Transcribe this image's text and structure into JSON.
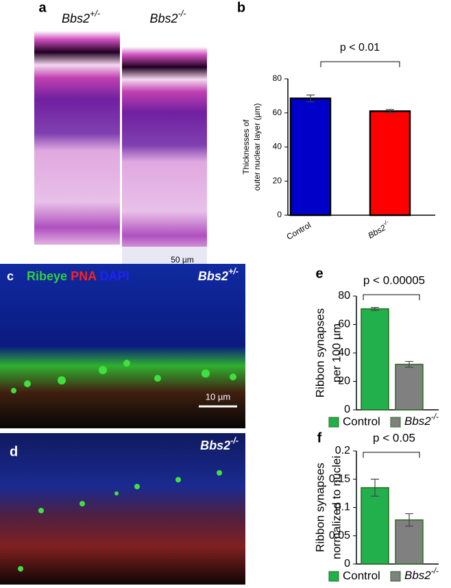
{
  "panels": {
    "a": {
      "label": "a",
      "left_title": "Bbs2+/-",
      "right_title": "Bbs2-/-",
      "scale_bar": "50 µm"
    },
    "b": {
      "label": "b"
    },
    "c": {
      "label": "c",
      "stain_1": "Ribeye",
      "stain_2": "PNA",
      "stain_3": "DAPI",
      "title": "Bbs2+/-",
      "scale_bar": "10 µm"
    },
    "d": {
      "label": "d",
      "title": "Bbs2-/-"
    },
    "e": {
      "label": "e"
    },
    "f": {
      "label": "f"
    }
  },
  "chart_data": [
    {
      "type": "bar",
      "y_label": [
        "Thicknesses of",
        "outer nuclear layer (µm)"
      ],
      "annotation": "p < 0.01",
      "categories": [
        "Control",
        "Bbs2-/-"
      ],
      "values": [
        68.5,
        61
      ],
      "errors": [
        2,
        1
      ],
      "colors": [
        "#0000c8",
        "#ff0000"
      ],
      "ylim": [
        0,
        80
      ],
      "yticks": [
        0,
        20,
        40,
        60,
        80
      ]
    },
    {
      "type": "bar",
      "y_label": [
        "Ribbon synapses",
        "per 100 µm"
      ],
      "annotation": "p < 0.00005",
      "series": [
        {
          "name": "Control",
          "color": "#21b04b",
          "values": [
            71
          ],
          "errors": [
            1
          ]
        },
        {
          "name": "Bbs2-/-",
          "color": "#808080",
          "values": [
            32
          ],
          "errors": [
            2
          ]
        }
      ],
      "ylim": [
        0,
        80
      ],
      "yticks": [
        0,
        20,
        40,
        60,
        80
      ]
    },
    {
      "type": "bar",
      "y_label": [
        "Ribbon synapses",
        "normalized to nuclei"
      ],
      "annotation": "p < 0.05",
      "series": [
        {
          "name": "Control",
          "color": "#21b04b",
          "values": [
            0.135
          ],
          "errors": [
            0.015
          ]
        },
        {
          "name": "Bbs2-/-",
          "color": "#808080",
          "values": [
            0.078
          ],
          "errors": [
            0.011
          ]
        }
      ],
      "ylim": [
        0,
        0.2
      ],
      "yticks": [
        0,
        0.05,
        0.1,
        0.15,
        0.2
      ]
    }
  ]
}
